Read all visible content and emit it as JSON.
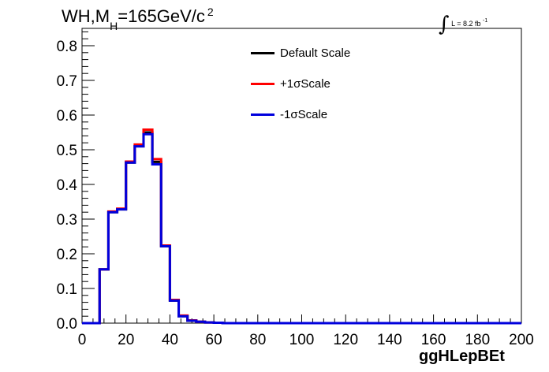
{
  "title": {
    "main": "WH,M",
    "subscript": "H",
    "rest": "=165GeV/c",
    "superscript": "2"
  },
  "luminosity": {
    "integral_symbol": "∫",
    "text": "L = 8.2 fb",
    "superscript": "-1"
  },
  "chart_data": {
    "type": "line",
    "style": "step histogram",
    "xlabel": "ggHLepBEt",
    "ylabel": "",
    "xlim": [
      0,
      200
    ],
    "ylim": [
      0,
      0.85
    ],
    "x_ticks": [
      "0",
      "20",
      "40",
      "60",
      "80",
      "100",
      "120",
      "140",
      "160",
      "180",
      "200"
    ],
    "y_ticks": [
      "0.0",
      "0.1",
      "0.2",
      "0.3",
      "0.4",
      "0.5",
      "0.6",
      "0.7",
      "0.8"
    ],
    "grid": false,
    "legend_position": "top-center",
    "bin_edges": [
      0,
      4,
      8,
      12,
      16,
      20,
      24,
      28,
      32,
      36,
      40,
      44,
      48,
      52,
      56,
      60,
      64,
      200
    ],
    "series": [
      {
        "name": "Default Scale",
        "color": "#000000",
        "values": [
          0,
          0,
          0.155,
          0.32,
          0.328,
          0.463,
          0.51,
          0.55,
          0.465,
          0.222,
          0.065,
          0.02,
          0.007,
          0.004,
          0.002,
          0.001,
          0
        ]
      },
      {
        "name": "+1σScale",
        "color": "#ff0000",
        "values": [
          0,
          0,
          0.155,
          0.322,
          0.33,
          0.466,
          0.515,
          0.558,
          0.473,
          0.224,
          0.067,
          0.022,
          0.008,
          0.004,
          0.002,
          0.001,
          0
        ]
      },
      {
        "name": "-1σScale",
        "color": "#0000dd",
        "values": [
          0,
          0,
          0.155,
          0.32,
          0.328,
          0.463,
          0.51,
          0.545,
          0.458,
          0.222,
          0.065,
          0.02,
          0.007,
          0.004,
          0.002,
          0.001,
          0
        ]
      }
    ]
  }
}
